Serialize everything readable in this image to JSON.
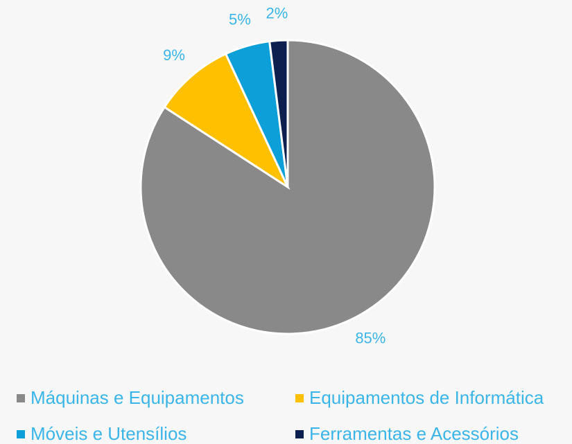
{
  "chart_data": {
    "type": "pie",
    "categories": [
      "Máquinas e Equipamentos",
      "Equipamentos de Informática",
      "Móveis e Utensílios",
      "Ferramentas e Acessórios"
    ],
    "values": [
      85,
      9,
      5,
      2
    ],
    "value_labels": [
      "85%",
      "9%",
      "5%",
      "2%"
    ],
    "colors": [
      "#898989",
      "#ffc000",
      "#0d9fd8",
      "#0c1f4e"
    ],
    "legend": "bottom"
  }
}
